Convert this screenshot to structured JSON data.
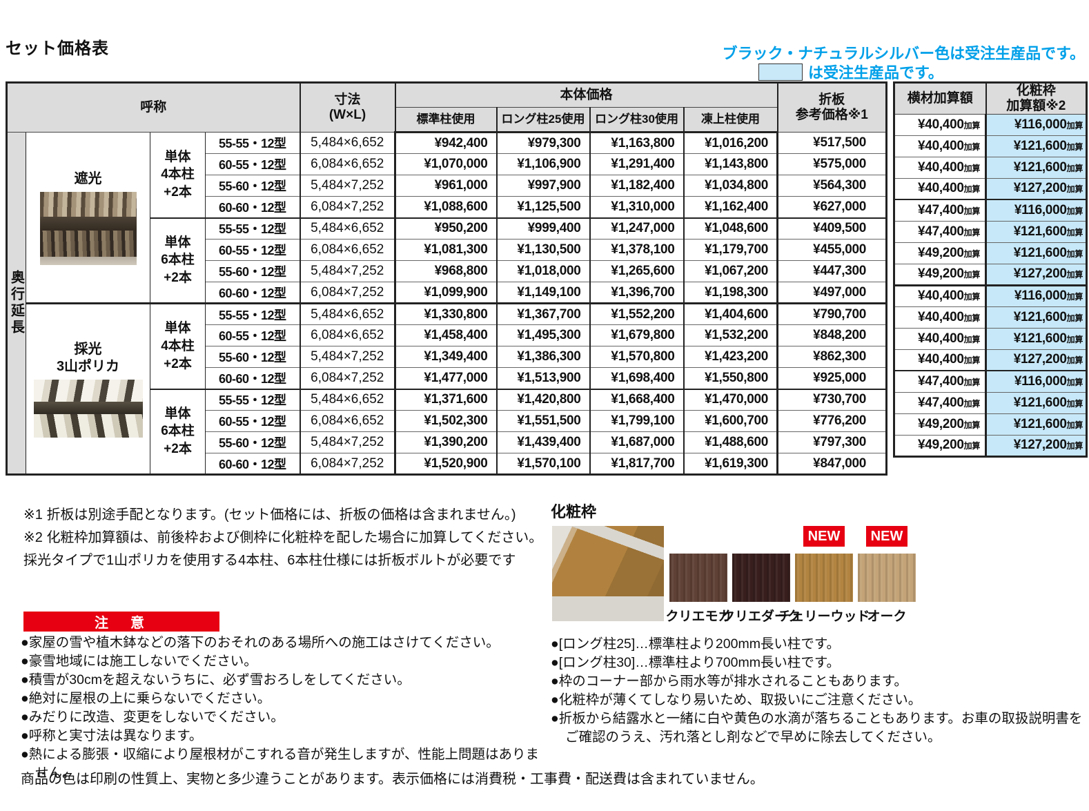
{
  "page": {
    "title": "セット価格表"
  },
  "colors": {
    "accent_blue": "#00a0e9",
    "order_swatch_blue": "#c9e9f9",
    "header_gray": "#dcdcdd",
    "warning_red": "#e60012",
    "kesho_cell_blue": "#c7e8f8"
  },
  "top_notes": {
    "line1": "ブラック・ナチュラルシルバー色は受注生産品です。",
    "line2": "は受注生産品です。"
  },
  "table": {
    "headers": {
      "name": "呼称",
      "size": "寸法\n(W×L)",
      "body_price": "本体価格",
      "sub": [
        "標準柱使用",
        "ロング柱25使用",
        "ロング柱30使用",
        "凍上柱使用"
      ],
      "oriita": "折板\n参考価格※1",
      "yokozai": "横材加算額",
      "kesho": "化粧枠\n加算額※2"
    },
    "side_label": "奥行延長",
    "kasan_suffix": "加算",
    "groups": [
      {
        "product_lines": [
          "遮光"
        ],
        "subgroups": [
          {
            "pillar_lines": [
              "単体",
              "4本柱",
              "+2本"
            ],
            "rows": [
              {
                "model": "55-55・12型",
                "size": "5,484×6,652",
                "prices": [
                  "¥942,400",
                  "¥979,300",
                  "¥1,163,800",
                  "¥1,016,200"
                ],
                "oriita": "¥517,500",
                "yokozai": "¥40,400",
                "kesho": "¥116,000"
              },
              {
                "model": "60-55・12型",
                "size": "6,084×6,652",
                "prices": [
                  "¥1,070,000",
                  "¥1,106,900",
                  "¥1,291,400",
                  "¥1,143,800"
                ],
                "oriita": "¥575,000",
                "yokozai": "¥40,400",
                "kesho": "¥121,600"
              },
              {
                "model": "55-60・12型",
                "size": "5,484×7,252",
                "prices": [
                  "¥961,000",
                  "¥997,900",
                  "¥1,182,400",
                  "¥1,034,800"
                ],
                "oriita": "¥564,300",
                "yokozai": "¥40,400",
                "kesho": "¥121,600"
              },
              {
                "model": "60-60・12型",
                "size": "6,084×7,252",
                "prices": [
                  "¥1,088,600",
                  "¥1,125,500",
                  "¥1,310,000",
                  "¥1,162,400"
                ],
                "oriita": "¥627,000",
                "yokozai": "¥40,400",
                "kesho": "¥127,200"
              }
            ]
          },
          {
            "pillar_lines": [
              "単体",
              "6本柱",
              "+2本"
            ],
            "rows": [
              {
                "model": "55-55・12型",
                "size": "5,484×6,652",
                "prices": [
                  "¥950,200",
                  "¥999,400",
                  "¥1,247,000",
                  "¥1,048,600"
                ],
                "oriita": "¥409,500",
                "yokozai": "¥47,400",
                "kesho": "¥116,000"
              },
              {
                "model": "60-55・12型",
                "size": "6,084×6,652",
                "prices": [
                  "¥1,081,300",
                  "¥1,130,500",
                  "¥1,378,100",
                  "¥1,179,700"
                ],
                "oriita": "¥455,000",
                "yokozai": "¥47,400",
                "kesho": "¥121,600"
              },
              {
                "model": "55-60・12型",
                "size": "5,484×7,252",
                "prices": [
                  "¥968,800",
                  "¥1,018,000",
                  "¥1,265,600",
                  "¥1,067,200"
                ],
                "oriita": "¥447,300",
                "yokozai": "¥49,200",
                "kesho": "¥121,600"
              },
              {
                "model": "60-60・12型",
                "size": "6,084×7,252",
                "prices": [
                  "¥1,099,900",
                  "¥1,149,100",
                  "¥1,396,700",
                  "¥1,198,300"
                ],
                "oriita": "¥497,000",
                "yokozai": "¥49,200",
                "kesho": "¥127,200"
              }
            ]
          }
        ]
      },
      {
        "product_lines": [
          "採光",
          "3山ポリカ"
        ],
        "subgroups": [
          {
            "pillar_lines": [
              "単体",
              "4本柱",
              "+2本"
            ],
            "rows": [
              {
                "model": "55-55・12型",
                "size": "5,484×6,652",
                "prices": [
                  "¥1,330,800",
                  "¥1,367,700",
                  "¥1,552,200",
                  "¥1,404,600"
                ],
                "oriita": "¥790,700",
                "yokozai": "¥40,400",
                "kesho": "¥116,000"
              },
              {
                "model": "60-55・12型",
                "size": "6,084×6,652",
                "prices": [
                  "¥1,458,400",
                  "¥1,495,300",
                  "¥1,679,800",
                  "¥1,532,200"
                ],
                "oriita": "¥848,200",
                "yokozai": "¥40,400",
                "kesho": "¥121,600"
              },
              {
                "model": "55-60・12型",
                "size": "5,484×7,252",
                "prices": [
                  "¥1,349,400",
                  "¥1,386,300",
                  "¥1,570,800",
                  "¥1,423,200"
                ],
                "oriita": "¥862,300",
                "yokozai": "¥40,400",
                "kesho": "¥121,600"
              },
              {
                "model": "60-60・12型",
                "size": "6,084×7,252",
                "prices": [
                  "¥1,477,000",
                  "¥1,513,900",
                  "¥1,698,400",
                  "¥1,550,800"
                ],
                "oriita": "¥925,000",
                "yokozai": "¥40,400",
                "kesho": "¥127,200"
              }
            ]
          },
          {
            "pillar_lines": [
              "単体",
              "6本柱",
              "+2本"
            ],
            "rows": [
              {
                "model": "55-55・12型",
                "size": "5,484×6,652",
                "prices": [
                  "¥1,371,600",
                  "¥1,420,800",
                  "¥1,668,400",
                  "¥1,470,000"
                ],
                "oriita": "¥730,700",
                "yokozai": "¥47,400",
                "kesho": "¥116,000"
              },
              {
                "model": "60-55・12型",
                "size": "6,084×6,652",
                "prices": [
                  "¥1,502,300",
                  "¥1,551,500",
                  "¥1,799,100",
                  "¥1,600,700"
                ],
                "oriita": "¥776,200",
                "yokozai": "¥47,400",
                "kesho": "¥121,600"
              },
              {
                "model": "55-60・12型",
                "size": "5,484×7,252",
                "prices": [
                  "¥1,390,200",
                  "¥1,439,400",
                  "¥1,687,000",
                  "¥1,488,600"
                ],
                "oriita": "¥797,300",
                "yokozai": "¥49,200",
                "kesho": "¥121,600"
              },
              {
                "model": "60-60・12型",
                "size": "6,084×7,252",
                "prices": [
                  "¥1,520,900",
                  "¥1,570,100",
                  "¥1,817,700",
                  "¥1,619,300"
                ],
                "oriita": "¥847,000",
                "yokozai": "¥49,200",
                "kesho": "¥127,200"
              }
            ]
          }
        ]
      }
    ]
  },
  "footnotes": [
    "※1 折板は別途手配となります。(セット価格には、折板の価格は含まれません。)",
    "※2 化粧枠加算額は、前後枠および側枠に化粧枠を配した場合に加算してください。",
    "採光タイプで1山ポリカを使用する4本柱、6本柱仕様には折板ボルトが必要です"
  ],
  "warning": {
    "title": "注　意",
    "items": [
      "●家屋の雪や植木鉢などの落下のおそれのある場所への施工はさけてください。",
      "●豪雪地域には施工しないでください。",
      "●積雪が30cmを超えないうちに、必ず雪おろしをしてください。",
      "●絶対に屋根の上に乗らないでください。",
      "●みだりに改造、変更をしないでください。",
      "●呼称と実寸法は異なります。",
      "●熱による膨張・収縮により屋根材がこすれる音が発生しますが、性能上問題はありません。"
    ]
  },
  "disclaimer": "商品の色は印刷の性質上、実物と多少違うことがあります。表示価格には消費税・工事費・配送費は含まれていません。",
  "kesho": {
    "title": "化粧枠",
    "new_label": "NEW",
    "swatches": [
      {
        "label": "クリエモカ",
        "color": "#604136",
        "is_new": false
      },
      {
        "label": "クリエダーク",
        "color": "#381f1e",
        "is_new": false
      },
      {
        "label": "チェリーウッド",
        "color": "#b28441",
        "is_new": true
      },
      {
        "label": "オーク",
        "color": "#c3a377",
        "is_new": true
      }
    ],
    "notes": [
      "●[ロング柱25]…標準柱より200mm長い柱です。",
      "●[ロング柱30]…標準柱より700mm長い柱です。",
      "●枠のコーナー部から雨水等が排水されることもあります。",
      "●化粧枠が薄くてしなり易いため、取扱いにご注意ください。",
      "●折板から結露水と一緒に白や黄色の水滴が落ちることもあります。お車の取扱説明書をご確認のうえ、汚れ落とし剤などで早めに除去してください。"
    ]
  }
}
